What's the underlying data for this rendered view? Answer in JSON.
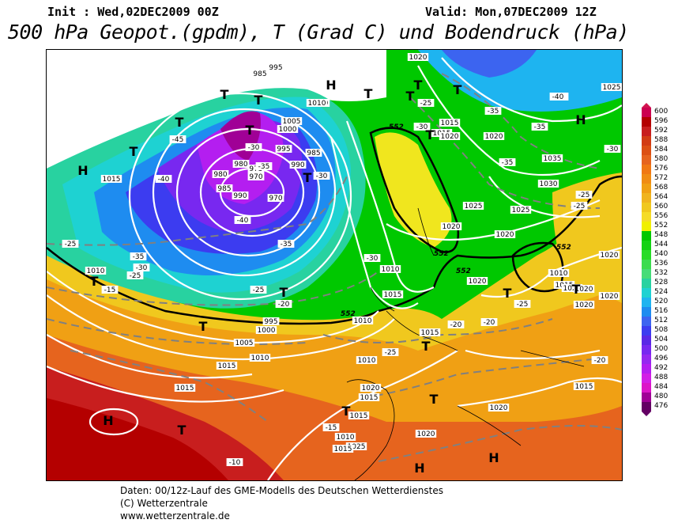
{
  "header": {
    "init": "Init : Wed,02DEC2009 00Z",
    "valid": "Valid: Mon,07DEC2009 12Z",
    "title": "500 hPa Geopot.(gpdm), T (Grad C) und Bodendruck (hPa)"
  },
  "colorbar": {
    "labels": [
      "600",
      "596",
      "592",
      "588",
      "584",
      "580",
      "576",
      "572",
      "568",
      "564",
      "560",
      "556",
      "552",
      "548",
      "544",
      "540",
      "536",
      "532",
      "528",
      "524",
      "520",
      "516",
      "512",
      "508",
      "504",
      "500",
      "496",
      "492",
      "488",
      "484",
      "480",
      "476"
    ],
    "colors": [
      "#cc0050",
      "#b40000",
      "#c81e1e",
      "#d23c14",
      "#dc5014",
      "#e6641e",
      "#f07814",
      "#f08c14",
      "#f0a014",
      "#f0b41e",
      "#f0c81e",
      "#f5dc28",
      "#f0f000",
      "#00c800",
      "#14d214",
      "#28dc28",
      "#3cdc50",
      "#46dc78",
      "#28d2a0",
      "#1ed2d2",
      "#1eb4f0",
      "#1e8cf0",
      "#3c64f0",
      "#3c3cf0",
      "#5a28e6",
      "#7828f0",
      "#9628f0",
      "#b41ef0",
      "#d21ee6",
      "#dc14c8",
      "#a00096",
      "#640064"
    ],
    "top_color": "#d21450",
    "bottom_color": "#640064"
  },
  "map": {
    "pressure_labels": [
      "1020",
      "995",
      "985",
      "1010",
      "1005",
      "1000",
      "995",
      "985",
      "990",
      "980",
      "975",
      "970",
      "980",
      "985",
      "990",
      "970",
      "1015",
      "1010",
      "1015",
      "1025",
      "1020",
      "1020",
      "1015",
      "1010",
      "1005",
      "1000",
      "995",
      "1010",
      "1015",
      "1010",
      "1015",
      "1020",
      "1020",
      "1020",
      "1025",
      "1020",
      "1020",
      "1035",
      "1030",
      "1025",
      "1020",
      "1015",
      "1010",
      "1010",
      "1010",
      "1015",
      "1020",
      "1015",
      "1025",
      "1015",
      "1020",
      "1015",
      "1020",
      "1015",
      "1020",
      "1020",
      "1010",
      "1015"
    ],
    "temp_labels": [
      "-40",
      "-45",
      "-30",
      "-35",
      "-40",
      "-40",
      "-30",
      "-35",
      "-25",
      "-35",
      "-30",
      "-25",
      "-15",
      "-20",
      "-25",
      "-30",
      "-25",
      "-30",
      "-35",
      "-35",
      "-40",
      "-35",
      "-30",
      "-25",
      "-25",
      "-25",
      "-20",
      "-20",
      "-25",
      "-20",
      "-15",
      "-10"
    ],
    "geopot_labels": [
      "552",
      "552",
      "552",
      "552",
      "552"
    ],
    "highs": [
      "H",
      "H",
      "H",
      "H",
      "H",
      "H"
    ],
    "lows": [
      "T",
      "T",
      "T",
      "T",
      "T",
      "T",
      "T",
      "T",
      "T",
      "T",
      "T",
      "T",
      "T",
      "T",
      "T",
      "T",
      "T",
      "T",
      "T",
      "T"
    ]
  },
  "footer": {
    "line1": "Daten: 00/12z-Lauf des GME-Modells des Deutschen Wetterdienstes",
    "line2": "(C) Wetterzentrale",
    "line3": "www.wetterzentrale.de"
  }
}
